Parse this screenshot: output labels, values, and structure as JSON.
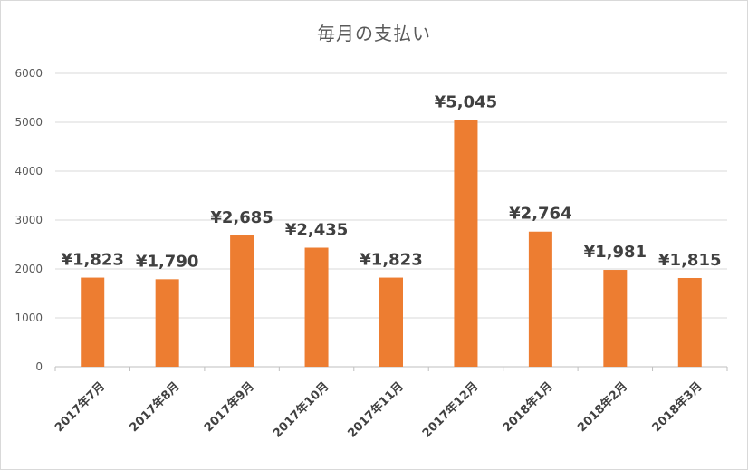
{
  "chart_data": {
    "type": "bar",
    "title": "毎月の支払い",
    "categories": [
      "2017年7月",
      "2017年8月",
      "2017年9月",
      "2017年10月",
      "2017年11月",
      "2017年12月",
      "2018年1月",
      "2018年2月",
      "2018年3月"
    ],
    "values": [
      1823,
      1790,
      2685,
      2435,
      1823,
      5045,
      2764,
      1981,
      1815
    ],
    "data_labels": [
      "¥1,823",
      "¥1,790",
      "¥2,685",
      "¥2,435",
      "¥1,823",
      "¥5,045",
      "¥2,764",
      "¥1,981",
      "¥1,815"
    ],
    "y_ticks": [
      "0",
      "1000",
      "2000",
      "3000",
      "4000",
      "5000",
      "6000"
    ],
    "ylim": [
      0,
      6000
    ],
    "grid": true,
    "legend": "none",
    "xlabel": "",
    "ylabel": "",
    "bar_color": "#ED7D31",
    "grid_color": "#d9d9d9"
  }
}
